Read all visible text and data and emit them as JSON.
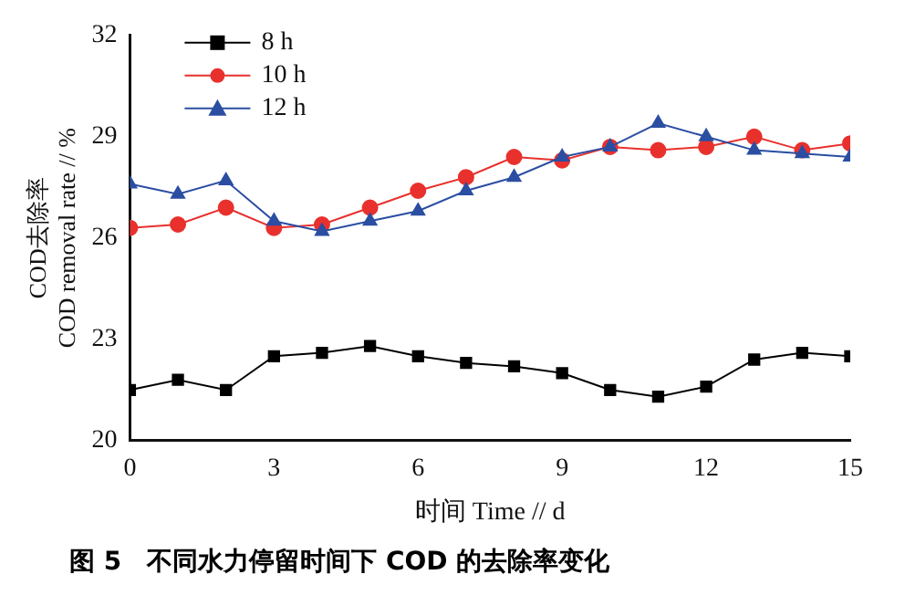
{
  "chart_data": {
    "type": "line",
    "title": "图 5　不同水力停留时间下 COD 的去除率变化",
    "xlabel": "时间 Time // d",
    "ylabel": "COD去除率\nCOD removal rate // %",
    "x": [
      0,
      1,
      2,
      3,
      4,
      5,
      6,
      7,
      8,
      9,
      10,
      11,
      12,
      13,
      14,
      15
    ],
    "series": [
      {
        "name": "8 h",
        "color": "#000000",
        "marker": "square",
        "values": [
          21.5,
          21.8,
          21.5,
          22.5,
          22.6,
          22.8,
          22.5,
          22.3,
          22.2,
          22.0,
          21.5,
          21.3,
          21.6,
          22.4,
          22.6,
          22.5
        ]
      },
      {
        "name": "10 h",
        "color": "#e8312d",
        "marker": "circle",
        "values": [
          26.3,
          26.4,
          26.9,
          26.3,
          26.4,
          26.9,
          27.4,
          27.8,
          28.4,
          28.3,
          28.7,
          28.6,
          28.7,
          29.0,
          28.6,
          28.8
        ]
      },
      {
        "name": "12 h",
        "color": "#2b4ea2",
        "marker": "triangle",
        "values": [
          27.6,
          27.3,
          27.7,
          26.5,
          26.2,
          26.5,
          26.8,
          27.4,
          27.8,
          28.4,
          28.7,
          29.4,
          29.0,
          28.6,
          28.5,
          28.4
        ]
      }
    ],
    "xlim": [
      0,
      15
    ],
    "xticks": [
      0,
      3,
      6,
      9,
      12,
      15
    ],
    "ylim": [
      20,
      32
    ],
    "yticks": [
      20,
      23,
      26,
      29,
      32
    ],
    "grid": false,
    "legend": "top left"
  }
}
